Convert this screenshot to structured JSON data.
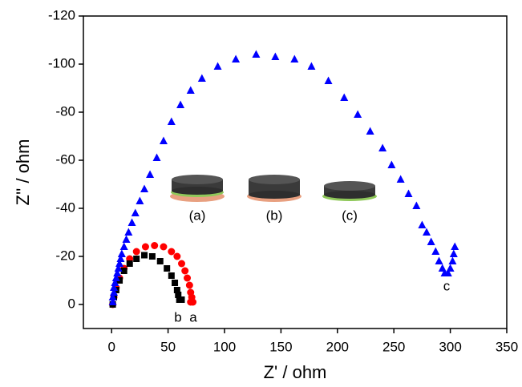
{
  "chart_data": {
    "type": "scatter",
    "x_label": "Z' / ohm",
    "y_label": "Z'' / ohm",
    "xlim": [
      -25,
      350
    ],
    "ylim": [
      10,
      -120
    ],
    "xticks": [
      0,
      50,
      100,
      150,
      200,
      250,
      300,
      350
    ],
    "yticks": [
      -120,
      -100,
      -80,
      -60,
      -40,
      -20,
      0
    ],
    "inset_labels": [
      "(a)",
      "(b)",
      "(c)"
    ],
    "series": [
      {
        "name": "a",
        "color": "#ff0000",
        "marker": "circle",
        "x": [
          1,
          2,
          4,
          7,
          11,
          16,
          22,
          30,
          38,
          46,
          53,
          58,
          62,
          65,
          67,
          69,
          70,
          71,
          72,
          70
        ],
        "values": [
          0,
          -3,
          -7,
          -11,
          -15,
          -19,
          -22,
          -24,
          -24.5,
          -24,
          -22,
          -20,
          -17,
          -14,
          -11,
          -8,
          -5,
          -3,
          -1,
          -1
        ]
      },
      {
        "name": "b",
        "color": "#000000",
        "marker": "square",
        "x": [
          1,
          2,
          4,
          7,
          11,
          16,
          22,
          29,
          36,
          43,
          49,
          53,
          56,
          58,
          59,
          60,
          62
        ],
        "values": [
          0,
          -3,
          -6,
          -10,
          -14,
          -17,
          -19,
          -20.5,
          -20,
          -18,
          -15,
          -12,
          -9,
          -6,
          -4,
          -2,
          -2
        ]
      },
      {
        "name": "c",
        "color": "#0000ff",
        "marker": "triangle",
        "x": [
          1,
          1,
          2,
          2,
          3,
          4,
          5,
          6,
          7,
          8,
          9,
          11,
          13,
          15,
          18,
          21,
          25,
          29,
          34,
          40,
          46,
          53,
          61,
          70,
          80,
          94,
          110,
          128,
          145,
          162,
          177,
          192,
          206,
          218,
          229,
          240,
          248,
          256,
          263,
          270,
          275,
          279,
          283,
          287,
          290,
          293,
          295,
          298,
          300,
          302,
          303,
          304
        ],
        "values": [
          -1,
          -3,
          -5,
          -7,
          -9,
          -11,
          -13,
          -15,
          -17,
          -19,
          -21,
          -24,
          -27,
          -30,
          -34,
          -38,
          -43,
          -48,
          -54,
          -61,
          -68,
          -76,
          -83,
          -89,
          -94,
          -99,
          -102,
          -104,
          -103,
          -102,
          -99,
          -93,
          -86,
          -79,
          -72,
          -65,
          -58,
          -52,
          -46,
          -41,
          -33,
          -30,
          -26,
          -22,
          -18,
          -15,
          -13,
          -13,
          -15,
          -18,
          -21,
          -24
        ]
      }
    ]
  }
}
